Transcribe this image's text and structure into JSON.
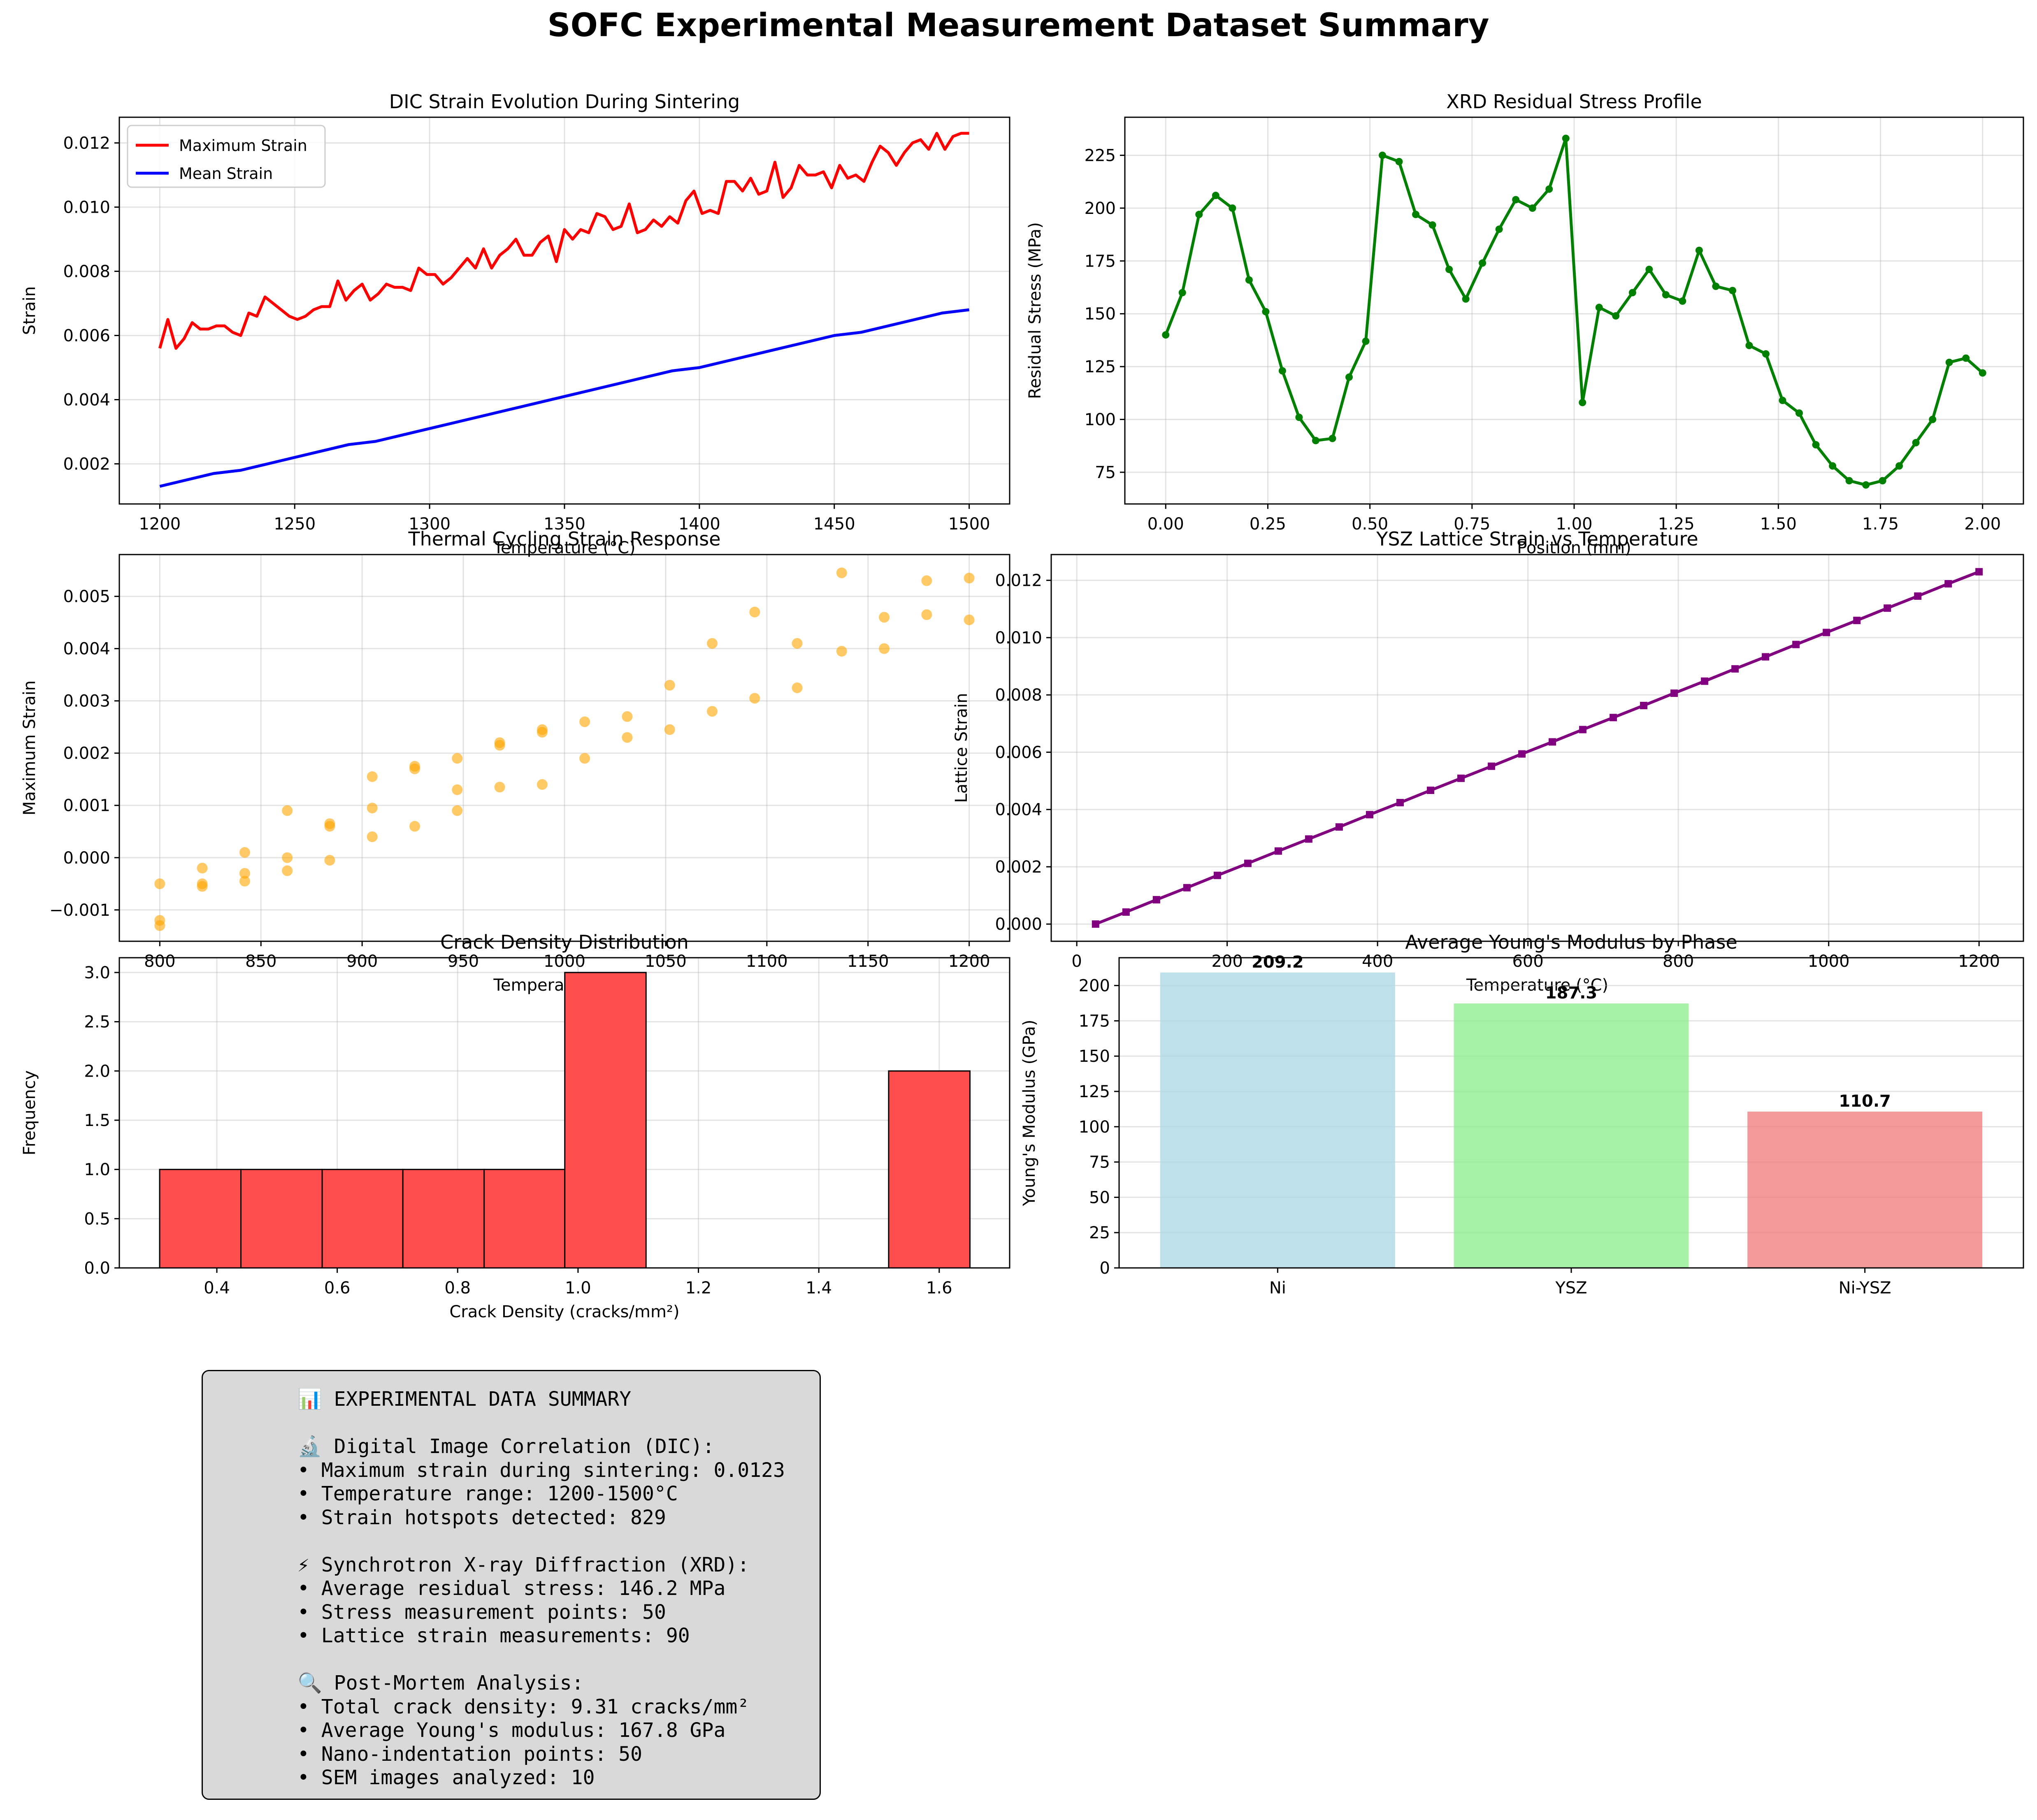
{
  "figure_title": "SOFC Experimental Measurement Dataset Summary",
  "colors": {
    "max_strain": "#ff0000",
    "mean_strain": "#0000ff",
    "stress_profile": "#008000",
    "thermal_points": "#ffa500",
    "lattice_line": "#800080",
    "crack_bars": "#ff4d4d",
    "ni_bar": "#add8e6",
    "ysz_bar": "#90ee90",
    "niysz_bar": "#f08080",
    "summary_box": "#d9d9d9"
  },
  "chart_data": [
    {
      "id": "dic",
      "type": "line",
      "title": "DIC Strain Evolution During Sintering",
      "xlabel": "Temperature (°C)",
      "ylabel": "Strain",
      "xlim": [
        1185,
        1515
      ],
      "ylim": [
        0.00075,
        0.0128
      ],
      "xticks": [
        1200,
        1250,
        1300,
        1350,
        1400,
        1450,
        1500
      ],
      "yticks": [
        0.002,
        0.004,
        0.006,
        0.008,
        0.01,
        0.012
      ],
      "ytick_decimals": 3,
      "grid": true,
      "legend": "upper left",
      "series": [
        {
          "name": "Maximum Strain",
          "x": [
            1200,
            1203,
            1206,
            1209,
            1212,
            1215,
            1218,
            1221,
            1224,
            1227,
            1230,
            1233,
            1236,
            1239,
            1242,
            1245,
            1248,
            1251,
            1254,
            1257,
            1260,
            1263,
            1266,
            1269,
            1272,
            1275,
            1278,
            1281,
            1284,
            1287,
            1290,
            1293,
            1296,
            1299,
            1302,
            1305,
            1308,
            1311,
            1314,
            1317,
            1320,
            1323,
            1326,
            1329,
            1332,
            1335,
            1338,
            1341,
            1344,
            1347,
            1350,
            1353,
            1356,
            1359,
            1362,
            1365,
            1368,
            1371,
            1374,
            1377,
            1380,
            1383,
            1386,
            1389,
            1392,
            1395,
            1398,
            1401,
            1404,
            1407,
            1410,
            1413,
            1416,
            1419,
            1422,
            1425,
            1428,
            1431,
            1434,
            1437,
            1440,
            1443,
            1446,
            1449,
            1452,
            1455,
            1458,
            1461,
            1464,
            1467,
            1470,
            1473,
            1476,
            1479,
            1482,
            1485,
            1488,
            1491,
            1494,
            1497,
            1500
          ],
          "y": [
            0.0056,
            0.0065,
            0.0056,
            0.0059,
            0.0064,
            0.0062,
            0.0062,
            0.0063,
            0.0063,
            0.0061,
            0.006,
            0.0067,
            0.0066,
            0.0072,
            0.007,
            0.0068,
            0.0066,
            0.0065,
            0.0066,
            0.0068,
            0.0069,
            0.0069,
            0.0077,
            0.0071,
            0.0074,
            0.0076,
            0.0071,
            0.0073,
            0.0076,
            0.0075,
            0.0075,
            0.0074,
            0.0081,
            0.0079,
            0.0079,
            0.0076,
            0.0078,
            0.0081,
            0.0084,
            0.0081,
            0.0087,
            0.0081,
            0.0085,
            0.0087,
            0.009,
            0.0085,
            0.0085,
            0.0089,
            0.0091,
            0.0083,
            0.0093,
            0.009,
            0.0093,
            0.0092,
            0.0098,
            0.0097,
            0.0093,
            0.0094,
            0.0101,
            0.0092,
            0.0093,
            0.0096,
            0.0094,
            0.0097,
            0.0095,
            0.0102,
            0.0105,
            0.0098,
            0.0099,
            0.0098,
            0.0108,
            0.0108,
            0.0105,
            0.0109,
            0.0104,
            0.0105,
            0.0114,
            0.0103,
            0.0106,
            0.0113,
            0.011,
            0.011,
            0.0111,
            0.0106,
            0.0113,
            0.0109,
            0.011,
            0.0108,
            0.0114,
            0.0119,
            0.0117,
            0.0113,
            0.0117,
            0.012,
            0.0121,
            0.0118,
            0.0123,
            0.0118,
            0.0122,
            0.0123,
            0.0123
          ]
        },
        {
          "name": "Mean Strain",
          "x": [
            1200,
            1210,
            1220,
            1230,
            1240,
            1250,
            1260,
            1270,
            1280,
            1290,
            1300,
            1310,
            1320,
            1330,
            1340,
            1350,
            1360,
            1370,
            1380,
            1390,
            1400,
            1410,
            1420,
            1430,
            1440,
            1450,
            1460,
            1470,
            1480,
            1490,
            1500
          ],
          "y": [
            0.0013,
            0.0015,
            0.0017,
            0.0018,
            0.002,
            0.0022,
            0.0024,
            0.0026,
            0.0027,
            0.0029,
            0.0031,
            0.0033,
            0.0035,
            0.0037,
            0.0039,
            0.0041,
            0.0043,
            0.0045,
            0.0047,
            0.0049,
            0.005,
            0.0052,
            0.0054,
            0.0056,
            0.0058,
            0.006,
            0.0061,
            0.0063,
            0.0065,
            0.0067,
            0.0068
          ]
        }
      ]
    },
    {
      "id": "xrd",
      "type": "line",
      "title": "XRD Residual Stress Profile",
      "xlabel": "Position (mm)",
      "ylabel": "Residual Stress (MPa)",
      "xlim": [
        -0.1,
        2.1
      ],
      "ylim": [
        60,
        243
      ],
      "xticks": [
        0.0,
        0.25,
        0.5,
        0.75,
        1.0,
        1.25,
        1.5,
        1.75,
        2.0
      ],
      "xtick_decimals": 2,
      "yticks": [
        75,
        100,
        125,
        150,
        175,
        200,
        225
      ],
      "ytick_decimals": 0,
      "grid": true,
      "series": [
        {
          "name": "",
          "x": [
            0.0,
            0.0408,
            0.0816,
            0.1224,
            0.1633,
            0.2041,
            0.2449,
            0.2857,
            0.3265,
            0.3673,
            0.4082,
            0.449,
            0.4898,
            0.5306,
            0.5714,
            0.6122,
            0.6531,
            0.6939,
            0.7347,
            0.7755,
            0.8163,
            0.8571,
            0.898,
            0.9388,
            0.9796,
            1.0204,
            1.0612,
            1.102,
            1.1429,
            1.1837,
            1.2245,
            1.2653,
            1.3061,
            1.3469,
            1.3878,
            1.4286,
            1.4694,
            1.5102,
            1.551,
            1.5918,
            1.6327,
            1.6735,
            1.7143,
            1.7551,
            1.7959,
            1.8367,
            1.8776,
            1.9184,
            1.9592,
            2.0
          ],
          "y": [
            140,
            160,
            197,
            206,
            200,
            166,
            151,
            123,
            101,
            90,
            91,
            120,
            137,
            225,
            222,
            197,
            192,
            171,
            157,
            174,
            190,
            204,
            200,
            209,
            233,
            108,
            153,
            149,
            160,
            171,
            159,
            156,
            180,
            163,
            161,
            135,
            131,
            109,
            103,
            88,
            78,
            71,
            69,
            71,
            78,
            89,
            100,
            127,
            129,
            122
          ]
        }
      ]
    },
    {
      "id": "thermal",
      "type": "scatter",
      "title": "Thermal Cycling Strain Response",
      "xlabel": "Temperature (°C)",
      "ylabel": "Maximum Strain",
      "xlim": [
        780,
        1220
      ],
      "ylim": [
        -0.0016,
        0.0058
      ],
      "xticks": [
        800,
        850,
        900,
        950,
        1000,
        1050,
        1100,
        1150,
        1200
      ],
      "yticks": [
        -0.001,
        0.0,
        0.001,
        0.002,
        0.003,
        0.004,
        0.005
      ],
      "ytick_decimals": 3,
      "grid": true,
      "series": [
        {
          "name": "",
          "x": [
            800,
            800,
            800,
            821,
            821,
            821,
            842,
            842,
            842,
            863,
            863,
            863,
            884,
            884,
            884,
            905,
            905,
            905,
            926,
            926,
            926,
            947,
            947,
            947,
            968,
            968,
            968,
            989,
            989,
            989,
            1010,
            1010,
            1031,
            1031,
            1052,
            1052,
            1073,
            1073,
            1094,
            1094,
            1115,
            1115,
            1137,
            1137,
            1158,
            1158,
            1179,
            1179,
            1200,
            1200
          ],
          "y": [
            -0.0005,
            -0.0012,
            -0.0013,
            -0.0002,
            -0.0005,
            -0.00055,
            0.0001,
            -0.0003,
            -0.00045,
            0.0009,
            0.0,
            -0.00025,
            0.00065,
            0.0006,
            -5e-05,
            0.00155,
            0.00095,
            0.0004,
            0.00175,
            0.0017,
            0.0006,
            0.0019,
            0.0013,
            0.0009,
            0.0022,
            0.00215,
            0.00135,
            0.0024,
            0.00245,
            0.0014,
            0.0026,
            0.0019,
            0.0027,
            0.0023,
            0.0033,
            0.00245,
            0.0041,
            0.0028,
            0.0047,
            0.00305,
            0.0041,
            0.00325,
            0.00545,
            0.00395,
            0.0046,
            0.004,
            0.0053,
            0.00465,
            0.00535,
            0.00455
          ]
        }
      ]
    },
    {
      "id": "lattice",
      "type": "line",
      "title": "YSZ Lattice Strain vs Temperature",
      "xlabel": "Temperature (°C)",
      "ylabel": "Lattice Strain",
      "xlim": [
        -34,
        1259
      ],
      "ylim": [
        -0.0006,
        0.0129
      ],
      "xticks": [
        0,
        200,
        400,
        600,
        800,
        1000,
        1200
      ],
      "yticks": [
        0.0,
        0.002,
        0.004,
        0.006,
        0.008,
        0.01,
        0.012
      ],
      "ytick_decimals": 3,
      "grid": true,
      "series": [
        {
          "name": "",
          "x": [
            25,
            65.5,
            106,
            146.5,
            187,
            227.5,
            268,
            308.5,
            349,
            389.5,
            430,
            470.5,
            511,
            551.5,
            592,
            632.5,
            673,
            713.5,
            754,
            794.5,
            835,
            875.5,
            916,
            956.5,
            997,
            1037.5,
            1078,
            1118.5,
            1159,
            1200
          ],
          "y": [
            0.0,
            0.00042,
            0.00085,
            0.00127,
            0.0017,
            0.00212,
            0.00255,
            0.00297,
            0.00339,
            0.00382,
            0.00424,
            0.00467,
            0.00509,
            0.00551,
            0.00594,
            0.00636,
            0.00679,
            0.00721,
            0.00763,
            0.00806,
            0.00848,
            0.00891,
            0.00933,
            0.00976,
            0.01018,
            0.0106,
            0.01103,
            0.01145,
            0.01188,
            0.0123
          ]
        }
      ]
    },
    {
      "id": "crack",
      "type": "bar",
      "title": "Crack Density Distribution",
      "xlabel": "Crack Density (cracks/mm²)",
      "ylabel": "Frequency",
      "xlim": [
        0.238,
        1.717
      ],
      "ylim": [
        0,
        3.15
      ],
      "xticks": [
        0.4,
        0.6,
        0.8,
        1.0,
        1.2,
        1.4,
        1.6
      ],
      "xtick_decimals": 1,
      "yticks": [
        0.0,
        0.5,
        1.0,
        1.5,
        2.0,
        2.5,
        3.0
      ],
      "ytick_decimals": 1,
      "grid": true,
      "bins": [
        0.305,
        0.44,
        0.575,
        0.709,
        0.844,
        0.978,
        1.113,
        1.247,
        1.382,
        1.516,
        1.651
      ],
      "counts": [
        1,
        1,
        1,
        1,
        1,
        3,
        0,
        0,
        0,
        2
      ]
    },
    {
      "id": "modulus",
      "type": "bar",
      "title": "Average Young's Modulus by Phase",
      "xlabel": "",
      "ylabel": "Young's Modulus (GPa)",
      "ylim": [
        0,
        219.7
      ],
      "yticks": [
        0,
        25,
        50,
        75,
        100,
        125,
        150,
        175,
        200
      ],
      "ytick_decimals": 0,
      "grid": true,
      "categories": [
        "Ni",
        "YSZ",
        "Ni-YSZ"
      ],
      "values": [
        209.2,
        187.3,
        110.7
      ],
      "value_labels": [
        "209.2",
        "187.3",
        "110.7"
      ]
    }
  ],
  "summary": {
    "lines": [
      "📊 EXPERIMENTAL DATA SUMMARY",
      "",
      "🔬 Digital Image Correlation (DIC):",
      "• Maximum strain during sintering: 0.0123",
      "• Temperature range: 1200-1500°C",
      "• Strain hotspots detected: 829",
      "",
      "⚡ Synchrotron X-ray Diffraction (XRD):",
      "• Average residual stress: 146.2 MPa",
      "• Stress measurement points: 50",
      "• Lattice strain measurements: 90",
      "",
      "🔍 Post-Mortem Analysis:",
      "• Total crack density: 9.31 cracks/mm²",
      "• Average Young's modulus: 167.8 GPa",
      "• Nano-indentation points: 50",
      "• SEM images analyzed: 10"
    ]
  }
}
